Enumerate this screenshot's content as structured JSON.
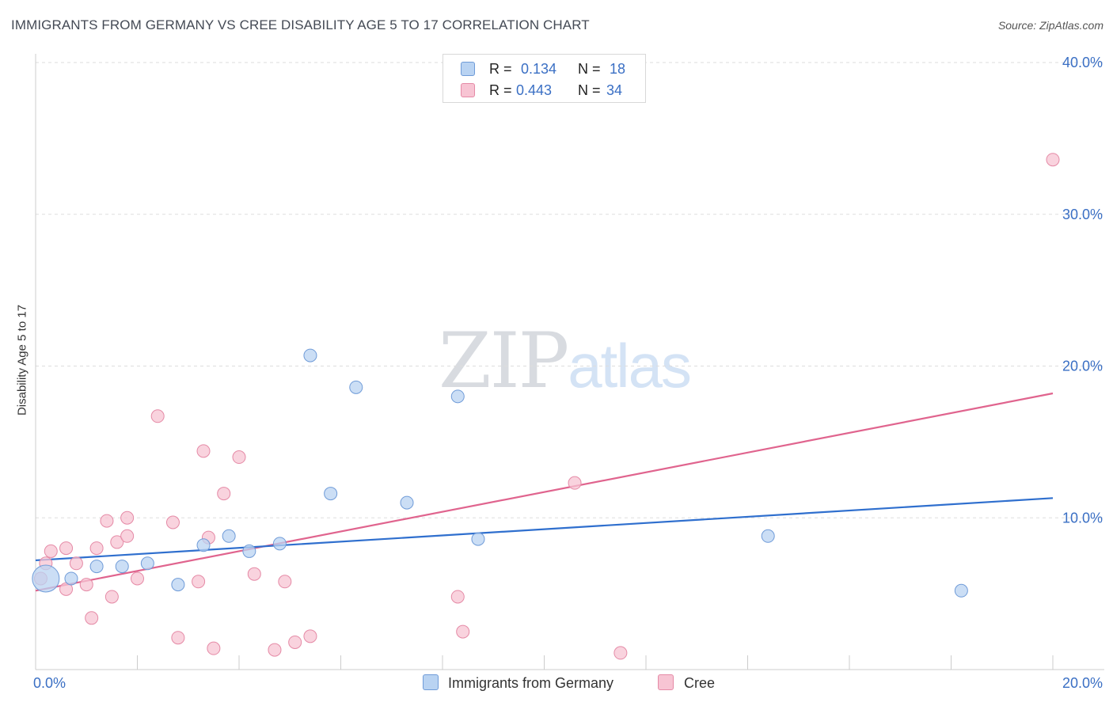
{
  "title": "IMMIGRANTS FROM GERMANY VS CREE DISABILITY AGE 5 TO 17 CORRELATION CHART",
  "source": "Source: ZipAtlas.com",
  "watermark": {
    "zip": "ZIP",
    "atlas": "atlas"
  },
  "legend": {
    "rows": [
      {
        "r_key": "R =",
        "r_val": "0.134",
        "n_key": "N =",
        "n_val": "18"
      },
      {
        "r_key": "R =",
        "r_val": "0.443",
        "n_key": "N =",
        "n_val": "34"
      }
    ]
  },
  "bottom_legend": [
    {
      "label": "Immigrants from Germany"
    },
    {
      "label": "Cree"
    }
  ],
  "colors": {
    "blue_fill": "#b9d3f2",
    "blue_stroke": "#6f9bd8",
    "blue_line": "#2f6fce",
    "pink_fill": "#f7c4d3",
    "pink_stroke": "#e58aa6",
    "pink_line": "#e0648e",
    "tick_text": "#3a6fc4",
    "grid": "#dddddd"
  },
  "chart_data": {
    "type": "scatter",
    "title": "IMMIGRANTS FROM GERMANY VS CREE DISABILITY AGE 5 TO 17 CORRELATION CHART",
    "xlabel": "",
    "ylabel": "Disability Age 5 to 17",
    "xlim": [
      0,
      20
    ],
    "ylim": [
      0,
      40
    ],
    "x_tick_labels": [
      {
        "value": 0,
        "label": "0.0%"
      },
      {
        "value": 20,
        "label": "20.0%"
      }
    ],
    "y_tick_labels": [
      {
        "value": 10,
        "label": "10.0%"
      },
      {
        "value": 20,
        "label": "20.0%"
      },
      {
        "value": 30,
        "label": "30.0%"
      },
      {
        "value": 40,
        "label": "40.0%"
      }
    ],
    "series": [
      {
        "name": "Immigrants from Germany",
        "r": 0.134,
        "n": 18,
        "trend": {
          "x": [
            0,
            20
          ],
          "y": [
            7.2,
            11.3
          ]
        },
        "points": [
          {
            "x": 0.2,
            "y": 6.0,
            "size": "large"
          },
          {
            "x": 0.7,
            "y": 6.0
          },
          {
            "x": 1.2,
            "y": 6.8
          },
          {
            "x": 1.7,
            "y": 6.8
          },
          {
            "x": 2.2,
            "y": 7.0
          },
          {
            "x": 2.8,
            "y": 5.6
          },
          {
            "x": 3.3,
            "y": 8.2
          },
          {
            "x": 3.8,
            "y": 8.8
          },
          {
            "x": 4.2,
            "y": 7.8
          },
          {
            "x": 4.8,
            "y": 8.3
          },
          {
            "x": 5.4,
            "y": 20.7
          },
          {
            "x": 5.8,
            "y": 11.6
          },
          {
            "x": 6.3,
            "y": 18.6
          },
          {
            "x": 7.3,
            "y": 11.0
          },
          {
            "x": 8.3,
            "y": 18.0
          },
          {
            "x": 8.7,
            "y": 8.6
          },
          {
            "x": 14.4,
            "y": 8.8
          },
          {
            "x": 18.2,
            "y": 5.2
          }
        ]
      },
      {
        "name": "Cree",
        "r": 0.443,
        "n": 34,
        "trend": {
          "x": [
            0,
            20
          ],
          "y": [
            5.2,
            18.2
          ]
        },
        "points": [
          {
            "x": 0.1,
            "y": 6.0
          },
          {
            "x": 0.2,
            "y": 7.0
          },
          {
            "x": 0.3,
            "y": 7.8
          },
          {
            "x": 0.6,
            "y": 5.3
          },
          {
            "x": 0.6,
            "y": 8.0
          },
          {
            "x": 0.8,
            "y": 7.0
          },
          {
            "x": 1.0,
            "y": 5.6
          },
          {
            "x": 1.1,
            "y": 3.4
          },
          {
            "x": 1.2,
            "y": 8.0
          },
          {
            "x": 1.4,
            "y": 9.8
          },
          {
            "x": 1.5,
            "y": 4.8
          },
          {
            "x": 1.6,
            "y": 8.4
          },
          {
            "x": 1.8,
            "y": 10.0
          },
          {
            "x": 1.8,
            "y": 8.8
          },
          {
            "x": 2.0,
            "y": 6.0
          },
          {
            "x": 2.4,
            "y": 16.7
          },
          {
            "x": 2.7,
            "y": 9.7
          },
          {
            "x": 2.8,
            "y": 2.1
          },
          {
            "x": 3.2,
            "y": 5.8
          },
          {
            "x": 3.3,
            "y": 14.4
          },
          {
            "x": 3.4,
            "y": 8.7
          },
          {
            "x": 3.5,
            "y": 1.4
          },
          {
            "x": 3.7,
            "y": 11.6
          },
          {
            "x": 4.0,
            "y": 14.0
          },
          {
            "x": 4.3,
            "y": 6.3
          },
          {
            "x": 4.7,
            "y": 1.3
          },
          {
            "x": 4.9,
            "y": 5.8
          },
          {
            "x": 5.1,
            "y": 1.8
          },
          {
            "x": 5.4,
            "y": 2.2
          },
          {
            "x": 8.3,
            "y": 4.8
          },
          {
            "x": 8.4,
            "y": 2.5
          },
          {
            "x": 10.6,
            "y": 12.3
          },
          {
            "x": 11.5,
            "y": 1.1
          },
          {
            "x": 20.0,
            "y": 33.6
          }
        ]
      }
    ]
  }
}
